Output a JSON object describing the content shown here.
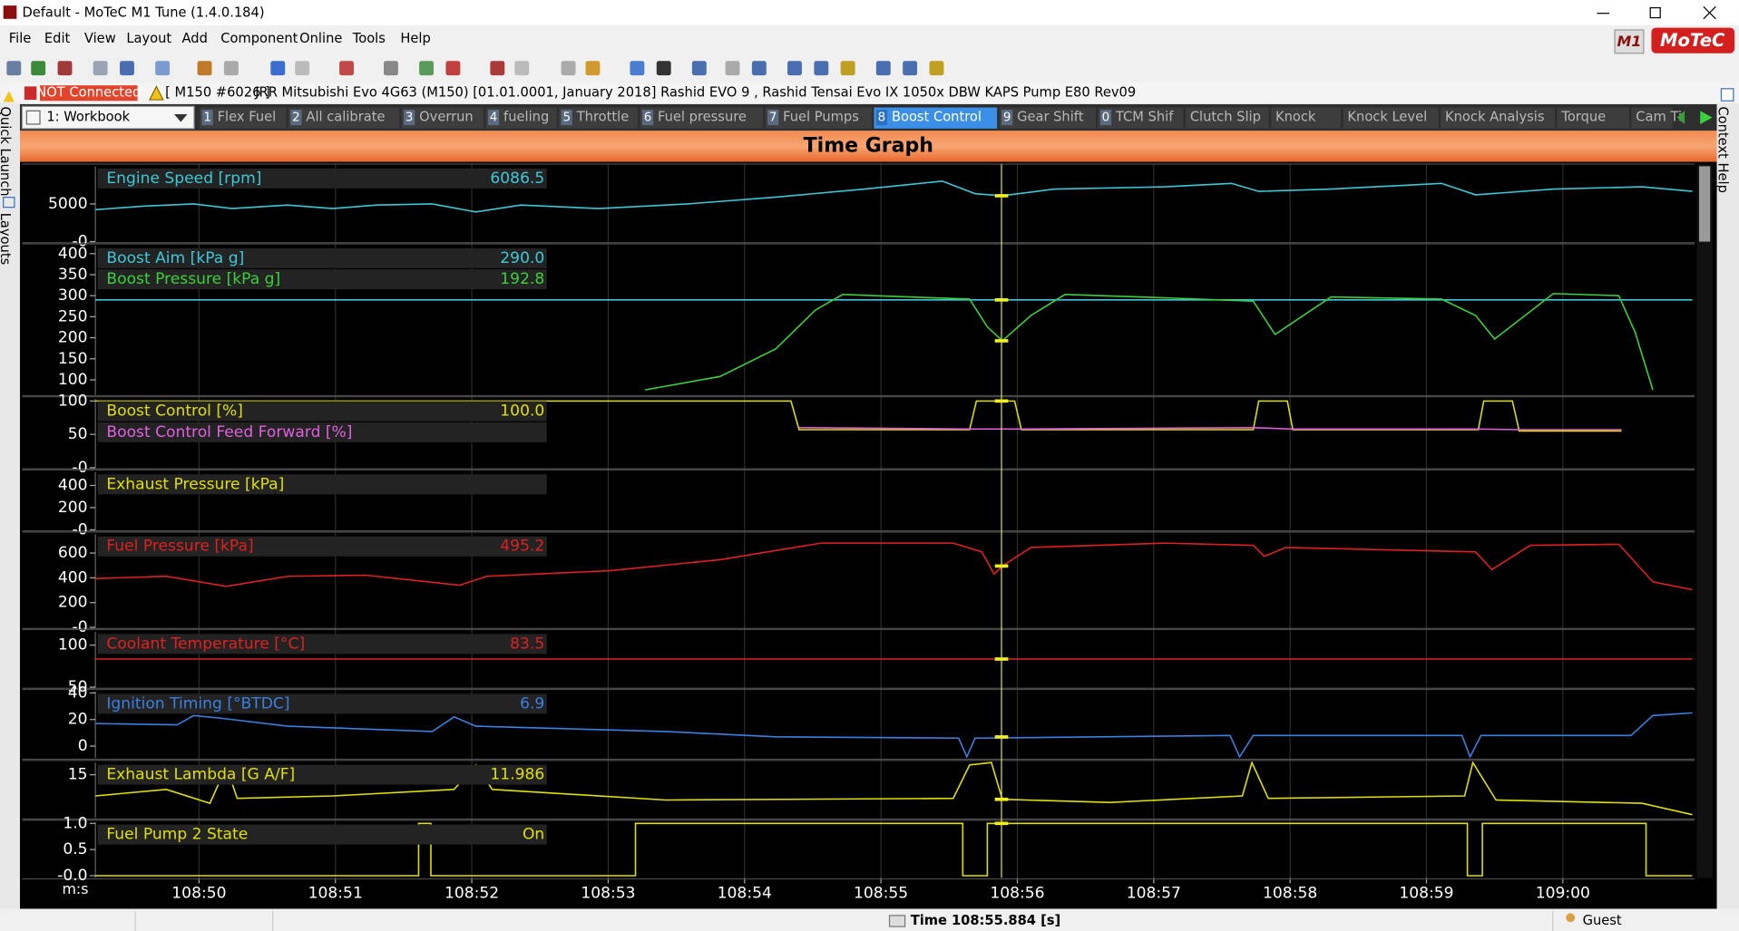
{
  "window": {
    "title": "Default - MoTeC M1 Tune (1.4.0.184)"
  },
  "menu": [
    "File",
    "Edit",
    "View",
    "Layout",
    "Add",
    "Component",
    "Online",
    "Tools",
    "Help"
  ],
  "brand": {
    "mark": "M1",
    "name": "MoTeC"
  },
  "status": {
    "connection": "NOT Connected",
    "device": "[ M150 #6026 ]",
    "description": "JRR Mitsubishi Evo 4G63 (M150) [01.01.0001, January 2018] Rashid EVO 9 , Rashid Tensai Evo IX 1050x DBW KAPS Pump E80 Rev09"
  },
  "workbook": "1: Workbook",
  "tabs": [
    {
      "key": "1",
      "label": "Flex Fuel"
    },
    {
      "key": "2",
      "label": "All calibrate"
    },
    {
      "key": "3",
      "label": "Overrun"
    },
    {
      "key": "4",
      "label": "fueling"
    },
    {
      "key": "5",
      "label": "Throttle"
    },
    {
      "key": "6",
      "label": "Fuel pressure"
    },
    {
      "key": "7",
      "label": "Fuel Pumps"
    },
    {
      "key": "8",
      "label": "Boost Control"
    },
    {
      "key": "9",
      "label": "Gear Shift"
    },
    {
      "key": "0",
      "label": "TCM Shif"
    },
    {
      "label": "Clutch Slip"
    },
    {
      "label": "Knock"
    },
    {
      "label": "Knock Level"
    },
    {
      "label": "Knock Analysis"
    },
    {
      "label": "Torque"
    },
    {
      "label": "Cam Ti"
    }
  ],
  "active_tab": 7,
  "side_panels": {
    "left": [
      "Quick Launch",
      "Layouts"
    ],
    "right": "Context Help"
  },
  "chart_data": {
    "type": "line",
    "title": "Time Graph",
    "x_unit": "m:s",
    "grid": true,
    "xlim": [
      6529.24,
      6540.95
    ],
    "xticks": [
      {
        "value": 6530,
        "label": "108:50"
      },
      {
        "value": 6531,
        "label": "108:51"
      },
      {
        "value": 6532,
        "label": "108:52"
      },
      {
        "value": 6533,
        "label": "108:53"
      },
      {
        "value": 6534,
        "label": "108:54"
      },
      {
        "value": 6535,
        "label": "108:55"
      },
      {
        "value": 6536,
        "label": "108:56"
      },
      {
        "value": 6537,
        "label": "108:57"
      },
      {
        "value": 6538,
        "label": "108:58"
      },
      {
        "value": 6539,
        "label": "108:59"
      },
      {
        "value": 6540,
        "label": "109:00"
      }
    ],
    "cursor": 6535.884,
    "panels": [
      {
        "ylim": [
          0,
          10000
        ],
        "yticks": [
          {
            "value": 0,
            "label": "-0"
          },
          5000
        ],
        "series": [
          {
            "name": "Engine Speed [rpm]",
            "color": "#3cc8d8",
            "readout": "6086.5",
            "cursor_value": 6086.5,
            "x": [
              6529.24,
              6529.59,
              6529.96,
              6530.24,
              6530.65,
              6530.98,
              6531.3,
              6531.71,
              6532.03,
              6532.36,
              6532.93,
              6533.58,
              6534.23,
              6534.88,
              6535.45,
              6535.69,
              6535.89,
              6536.27,
              6537.08,
              6537.57,
              6537.77,
              6538.3,
              6539.11,
              6539.36,
              6539.93,
              6540.58,
              6540.95
            ],
            "values": [
              4240,
              4700,
              5000,
              4390,
              4850,
              4390,
              4850,
              5000,
              3940,
              4850,
              4390,
              5000,
              5910,
              6970,
              8030,
              6360,
              6090,
              6970,
              7270,
              7730,
              6670,
              6970,
              7730,
              6210,
              6970,
              7270,
              6670
            ]
          }
        ]
      },
      {
        "ylim": [
          65,
          418
        ],
        "yticks": [
          100,
          150,
          200,
          250,
          300,
          350,
          400
        ],
        "series": [
          {
            "name": "Boost Aim [kPa g]",
            "color": "#3cc8d8",
            "readout": "290.0",
            "cursor_value": 290,
            "x": [
              6529.24,
              6540.95
            ],
            "values": [
              290,
              290
            ]
          },
          {
            "name": "Boost Pressure [kPa g]",
            "color": "#3ad13a",
            "readout": "192.8",
            "cursor_value": 192.8,
            "x": [
              6533.27,
              6533.82,
              6534.23,
              6534.52,
              6534.72,
              6535.21,
              6535.65,
              6535.78,
              6535.89,
              6536.1,
              6536.35,
              6537.08,
              6537.73,
              6537.89,
              6538.3,
              6539.11,
              6539.36,
              6539.5,
              6539.93,
              6540.41,
              6540.53,
              6540.66
            ],
            "values": [
              76,
              108,
              174,
              266,
              303,
              297,
              292,
              226,
              192.8,
              253,
              303,
              295,
              287,
              208,
              297,
              292,
              253,
              197,
              305,
              300,
              213,
              76
            ]
          }
        ]
      },
      {
        "ylim": [
          0,
          103
        ],
        "yticks": [
          {
            "value": 0,
            "label": "-0"
          },
          50,
          100
        ],
        "series": [
          {
            "name": "Boost Control [%]",
            "color": "#e0e000",
            "readout": "100.0",
            "cursor_value": 100,
            "x": [
              6529.24,
              6534.34,
              6534.4,
              6535.65,
              6535.7,
              6535.98,
              6536.03,
              6537.73,
              6537.77,
              6537.98,
              6538.02,
              6539.38,
              6539.42,
              6539.63,
              6539.68,
              6540.43
            ],
            "values": [
              100,
              100,
              57,
              57,
              100,
              100,
              57,
              57,
              100,
              100,
              57,
              57,
              100,
              100,
              55,
              55
            ]
          },
          {
            "name": "Boost Control Feed Forward [%]",
            "color": "#e060e0",
            "x": [
              6534.4,
              6535.65,
              6536.03,
              6537.73,
              6538.02,
              6539.38,
              6539.68,
              6540.43
            ],
            "values": [
              60,
              58,
              58,
              60,
              58,
              58,
              57,
              57
            ]
          }
        ]
      },
      {
        "ylim": [
          0,
          520
        ],
        "yticks": [
          {
            "value": 0,
            "label": "-0"
          },
          200,
          400
        ],
        "series": [
          {
            "name": "Exhaust Pressure [kPa]",
            "color": "#e0e000",
            "x": [],
            "values": []
          }
        ]
      },
      {
        "ylim": [
          0,
          752
        ],
        "yticks": [
          {
            "value": 0,
            "label": "-0"
          },
          200,
          400,
          600
        ],
        "series": [
          {
            "name": "Fuel Pressure [kPa]",
            "color": "#e02020",
            "readout": "495.2",
            "cursor_value": 495.2,
            "x": [
              6529.24,
              6529.76,
              6530.2,
              6530.65,
              6531.22,
              6531.91,
              6532.11,
              6533.01,
              6533.82,
              6534.56,
              6535.53,
              6535.74,
              6535.83,
              6535.89,
              6536.1,
              6537.08,
              6537.73,
              6537.81,
              6537.97,
              6539.36,
              6539.48,
              6539.76,
              6540.41,
              6540.66,
              6540.95
            ],
            "values": [
              394,
              412,
              331,
              412,
              421,
              340,
              412,
              457,
              546,
              680,
              680,
              609,
              430,
              495.2,
              645,
              680,
              662,
              573,
              645,
              609,
              466,
              662,
              671,
              367,
              304
            ]
          }
        ]
      },
      {
        "ylim": [
          50,
          116
        ],
        "yticks": [
          50,
          100
        ],
        "series": [
          {
            "name": "Coolant Temperature [°C]",
            "color": "#e02020",
            "readout": "83.5",
            "cursor_value": 83.5,
            "x": [
              6529.24,
              6540.95
            ],
            "values": [
              83.5,
              83.5
            ]
          }
        ]
      },
      {
        "ylim": [
          -9,
          41
        ],
        "yticks": [
          0,
          20,
          40
        ],
        "series": [
          {
            "name": "Ignition Timing [°BTDC]",
            "color": "#3a80e0",
            "readout": "6.9",
            "cursor_value": 6.9,
            "x": [
              6529.24,
              6529.84,
              6529.96,
              6530.16,
              6530.65,
              6531.71,
              6531.87,
              6532.03,
              6533.42,
              6534.23,
              6535.57,
              6535.63,
              6535.69,
              6537.56,
              6537.63,
              6537.73,
              6539.26,
              6539.32,
              6539.4,
              6540.5,
              6540.66,
              6540.95
            ],
            "values": [
              17,
              16,
              23,
              21,
              15,
              11,
              22,
              15,
              11,
              7,
              6,
              -8,
              6,
              8,
              -8,
              8,
              8,
              -8,
              8,
              8,
              23,
              25
            ]
          }
        ]
      },
      {
        "ylim": [
          9.7,
          16.5
        ],
        "yticks": [
          15
        ],
        "series": [
          {
            "name": "Exhaust Lambda [G A/F]",
            "color": "#e0e000",
            "readout": "11.986",
            "cursor_value": 11.986,
            "x": [
              6529.24,
              6529.76,
              6530.08,
              6530.2,
              6530.28,
              6530.98,
              6531.87,
              6532.03,
              6532.15,
              6533.42,
              6535.53,
              6535.65,
              6535.81,
              6535.89,
              6536.68,
              6537.65,
              6537.72,
              6537.84,
              6539.28,
              6539.34,
              6539.51,
              6540.58,
              6540.95
            ],
            "values": [
              12.4,
              13.2,
              11.5,
              16,
              12.1,
              12.4,
              13.2,
              16.2,
              13.2,
              11.9,
              12.1,
              16.2,
              16.5,
              11.986,
              11.6,
              12.4,
              16.5,
              12.1,
              12.4,
              16.5,
              11.9,
              11.5,
              10.1
            ]
          }
        ]
      },
      {
        "ylim": [
          -0.04,
          1.02
        ],
        "yticks": [
          {
            "value": 0,
            "label": "-0.0"
          },
          {
            "value": 0.5,
            "label": "0.5"
          },
          {
            "value": 1,
            "label": "1.0"
          }
        ],
        "series": [
          {
            "name": "Fuel Pump 2 State",
            "color": "#e0e000",
            "readout": "On",
            "cursor_value": 1,
            "x": [
              6529.24,
              6531.61,
              6531.61,
              6531.7,
              6531.7,
              6533.2,
              6533.2,
              6535.6,
              6535.6,
              6535.78,
              6535.78,
              6539.3,
              6539.3,
              6539.41,
              6539.41,
              6540.61,
              6540.61,
              6540.95
            ],
            "values": [
              0,
              0,
              1,
              1,
              0,
              0,
              1,
              1,
              0,
              0,
              1,
              1,
              0,
              0,
              1,
              1,
              0,
              0
            ]
          }
        ]
      }
    ]
  },
  "footer": {
    "cursor_label": "Time",
    "cursor_time": "108:55.884 [s]",
    "user": "Guest"
  }
}
